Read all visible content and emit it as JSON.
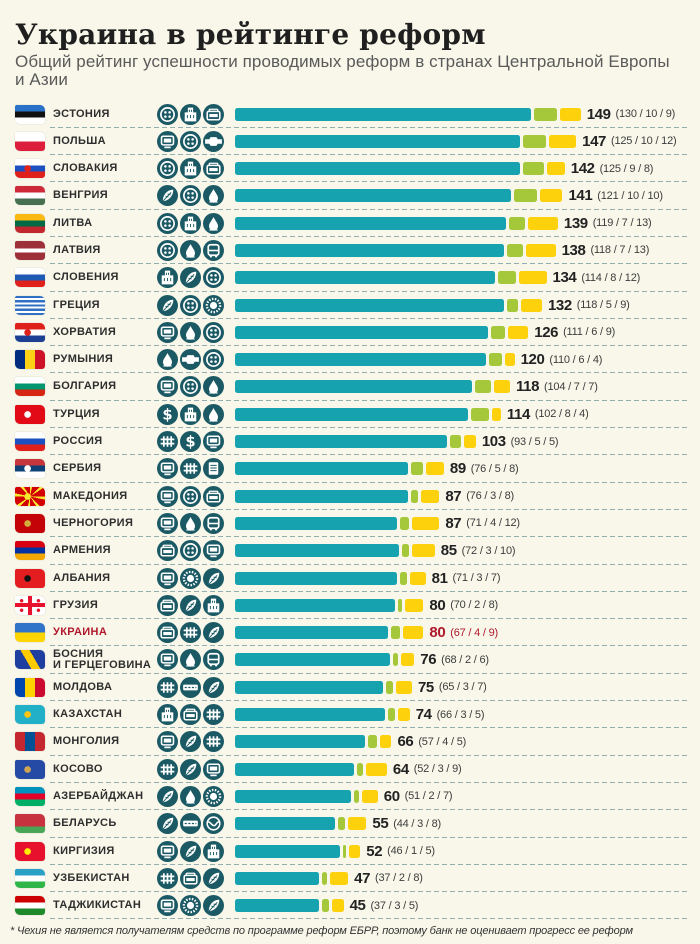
{
  "header": {
    "title": "Украина в рейтинге реформ",
    "subtitle": "Общий рейтинг успешности проводимых реформ в странах Центральной Европы и Азии"
  },
  "footnote": "* Чехия не является получателям средств по программе реформ ЕБРР, поэтому банк не оценивает прогресс ее реформ",
  "colors": {
    "teal": "#17a2b0",
    "green": "#a5c83b",
    "yellow": "#fdd10c",
    "icon_circle": "#1b5a65",
    "highlight": "#b0192d"
  },
  "chart_data": {
    "type": "bar",
    "orientation": "horizontal",
    "stacked": true,
    "title": "Украина в рейтинге реформ",
    "subtitle": "Общий рейтинг успешности проводимых реформ в странах Центральной Европы и Азии",
    "xlabel": "",
    "ylabel": "",
    "grid": false,
    "legend": "none",
    "categories": [
      "ЭСТОНИЯ",
      "ПОЛЬША",
      "СЛОВАКИЯ",
      "ВЕНГРИЯ",
      "ЛИТВА",
      "ЛАТВИЯ",
      "СЛОВЕНИЯ",
      "ГРЕЦИЯ",
      "ХОРВАТИЯ",
      "РУМЫНИЯ",
      "БОЛГАРИЯ",
      "ТУРЦИЯ",
      "РОССИЯ",
      "СЕРБИЯ",
      "МАКЕДОНИЯ",
      "ЧЕРНОГОРИЯ",
      "АРМЕНИЯ",
      "АЛБАНИЯ",
      "ГРУЗИЯ",
      "УКРАИНА",
      "БОСНИЯ И ГЕРЦЕГОВИНА",
      "МОЛДОВА",
      "КАЗАХСТАН",
      "МОНГОЛИЯ",
      "КОСОВО",
      "АЗЕРБАЙДЖАН",
      "БЕЛАРУСЬ",
      "КИРГИЗИЯ",
      "УЗБЕКИСТАН",
      "ТАДЖИКИСТАН"
    ],
    "series": [
      {
        "name": "teal",
        "color": "#17a2b0",
        "values": [
          130,
          125,
          125,
          121,
          119,
          118,
          114,
          118,
          111,
          110,
          104,
          102,
          93,
          76,
          76,
          71,
          72,
          71,
          70,
          67,
          68,
          65,
          66,
          57,
          52,
          51,
          44,
          46,
          37,
          37
        ]
      },
      {
        "name": "green",
        "color": "#a5c83b",
        "values": [
          10,
          10,
          9,
          10,
          7,
          7,
          8,
          5,
          6,
          6,
          7,
          8,
          5,
          5,
          3,
          4,
          3,
          3,
          2,
          4,
          2,
          3,
          3,
          4,
          3,
          2,
          3,
          1,
          2,
          3
        ]
      },
      {
        "name": "yellow",
        "color": "#fdd10c",
        "values": [
          9,
          12,
          8,
          10,
          13,
          13,
          12,
          9,
          9,
          4,
          7,
          4,
          5,
          8,
          8,
          12,
          10,
          7,
          8,
          9,
          6,
          7,
          5,
          5,
          9,
          7,
          8,
          5,
          8,
          5
        ]
      }
    ],
    "totals": [
      149,
      147,
      142,
      141,
      139,
      138,
      134,
      132,
      126,
      120,
      118,
      114,
      103,
      89,
      87,
      87,
      85,
      81,
      80,
      80,
      76,
      75,
      74,
      66,
      64,
      60,
      55,
      52,
      47,
      45
    ],
    "rows": [
      {
        "country": "ЭСТОНИЯ",
        "total": "149",
        "detail": "(130 / 10 / 9)",
        "parts": [
          130,
          10,
          9
        ],
        "icons": [
          "dots",
          "building",
          "bed"
        ],
        "flag": {
          "dir": "h",
          "stripes": [
            "#2a72c7",
            "#111111",
            "#ffffff"
          ]
        }
      },
      {
        "country": "ПОЛЬША",
        "total": "147",
        "detail": "(125 / 10 / 12)",
        "parts": [
          125,
          10,
          12
        ],
        "icons": [
          "monitor",
          "dots",
          "pipe"
        ],
        "flag": {
          "dir": "h",
          "stripes": [
            "#ffffff",
            "#dc1e3c"
          ]
        }
      },
      {
        "country": "СЛОВАКИЯ",
        "total": "142",
        "detail": "(125 / 9 / 8)",
        "parts": [
          125,
          9,
          8
        ],
        "icons": [
          "dots",
          "building",
          "bed"
        ],
        "flag": {
          "dir": "h",
          "stripes": [
            "#ffffff",
            "#1c4fbf",
            "#e0201b"
          ],
          "emblem": "#e0201b"
        }
      },
      {
        "country": "ВЕНГРИЯ",
        "total": "141",
        "detail": "(121 / 10 / 10)",
        "parts": [
          121,
          10,
          10
        ],
        "icons": [
          "wheat",
          "dots",
          "drop"
        ],
        "flag": {
          "dir": "h",
          "stripes": [
            "#ce2939",
            "#ffffff",
            "#477050"
          ]
        }
      },
      {
        "country": "ЛИТВА",
        "total": "139",
        "detail": "(119 / 7 / 13)",
        "parts": [
          119,
          7,
          13
        ],
        "icons": [
          "dots",
          "building",
          "drop"
        ],
        "flag": {
          "dir": "h",
          "stripes": [
            "#fdb913",
            "#006a44",
            "#c1272d"
          ]
        }
      },
      {
        "country": "ЛАТВИЯ",
        "total": "138",
        "detail": "(118 / 7 / 13)",
        "parts": [
          118,
          7,
          13
        ],
        "icons": [
          "dots",
          "drop",
          "bus"
        ],
        "flag": {
          "dir": "h",
          "stripes": [
            "#9e3039",
            "#ffffff",
            "#9e3039"
          ],
          "weights": [
            2,
            1,
            2
          ]
        }
      },
      {
        "country": "СЛОВЕНИЯ",
        "total": "134",
        "detail": "(114 / 8 / 12)",
        "parts": [
          114,
          8,
          12
        ],
        "icons": [
          "building",
          "wheat",
          "dots"
        ],
        "flag": {
          "dir": "h",
          "stripes": [
            "#ffffff",
            "#1e5ab4",
            "#e0201b"
          ]
        }
      },
      {
        "country": "ГРЕЦИЯ",
        "total": "132",
        "detail": "(118 / 5 / 9)",
        "parts": [
          118,
          5,
          9
        ],
        "icons": [
          "wheat",
          "dots",
          "sun"
        ],
        "flag": {
          "dir": "h",
          "stripes": [
            "#2f6fc4",
            "#ffffff",
            "#2f6fc4",
            "#ffffff",
            "#2f6fc4",
            "#ffffff",
            "#2f6fc4",
            "#ffffff",
            "#2f6fc4"
          ]
        }
      },
      {
        "country": "ХОРВАТИЯ",
        "total": "126",
        "detail": "(111 / 6 / 9)",
        "parts": [
          111,
          6,
          9
        ],
        "icons": [
          "monitor",
          "drop",
          "dots"
        ],
        "flag": {
          "dir": "h",
          "stripes": [
            "#e0201b",
            "#ffffff",
            "#1c3f94"
          ],
          "emblem": "#e0201b"
        }
      },
      {
        "country": "РУМЫНИЯ",
        "total": "120",
        "detail": "(110 / 6 / 4)",
        "parts": [
          110,
          6,
          4
        ],
        "icons": [
          "drop",
          "pipe",
          "dots"
        ],
        "flag": {
          "dir": "v",
          "stripes": [
            "#002b7f",
            "#fcd116",
            "#ce1126"
          ]
        }
      },
      {
        "country": "БОЛГАРИЯ",
        "total": "118",
        "detail": "(104 / 7 / 7)",
        "parts": [
          104,
          7,
          7
        ],
        "icons": [
          "monitor",
          "dots",
          "drop"
        ],
        "flag": {
          "dir": "h",
          "stripes": [
            "#ffffff",
            "#00966e",
            "#d62612"
          ]
        }
      },
      {
        "country": "ТУРЦИЯ",
        "total": "114",
        "detail": "(102 / 8 / 4)",
        "parts": [
          102,
          8,
          4
        ],
        "icons": [
          "dollar",
          "building",
          "drop"
        ],
        "flag": {
          "dir": "h",
          "stripes": [
            "#e30a17"
          ],
          "emblem": "#ffffff"
        }
      },
      {
        "country": "РОССИЯ",
        "total": "103",
        "detail": "(93 / 5 / 5)",
        "parts": [
          93,
          5,
          5
        ],
        "icons": [
          "rail",
          "dollar",
          "monitor"
        ],
        "flag": {
          "dir": "h",
          "stripes": [
            "#ffffff",
            "#1c4fbf",
            "#e0201b"
          ]
        }
      },
      {
        "country": "СЕРБИЯ",
        "total": "89",
        "detail": "(76 / 5 / 8)",
        "parts": [
          76,
          5,
          8
        ],
        "icons": [
          "monitor",
          "rail",
          "document"
        ],
        "flag": {
          "dir": "h",
          "stripes": [
            "#c6363c",
            "#0c4076",
            "#ffffff"
          ],
          "emblem": "#ffffff"
        }
      },
      {
        "country": "МАКЕДОНИЯ",
        "total": "87",
        "detail": "(76 / 3 / 8)",
        "parts": [
          76,
          3,
          8
        ],
        "icons": [
          "monitor",
          "dots",
          "bed"
        ],
        "flag": {
          "dir": "h",
          "stripes": [
            "#d20000"
          ],
          "emblem": "#f8e92e",
          "pattern": "rays"
        }
      },
      {
        "country": "ЧЕРНОГОРИЯ",
        "total": "87",
        "detail": "(71 / 4 / 12)",
        "parts": [
          71,
          4,
          12
        ],
        "icons": [
          "monitor",
          "drop",
          "bus"
        ],
        "flag": {
          "dir": "h",
          "stripes": [
            "#c40308"
          ],
          "emblem": "#d3ae3b"
        }
      },
      {
        "country": "АРМЕНИЯ",
        "total": "85",
        "detail": "(72 / 3 / 10)",
        "parts": [
          72,
          3,
          10
        ],
        "icons": [
          "bed",
          "dots",
          "monitor"
        ],
        "flag": {
          "dir": "h",
          "stripes": [
            "#d90012",
            "#0033a0",
            "#f2a800"
          ]
        }
      },
      {
        "country": "АЛБАНИЯ",
        "total": "81",
        "detail": "(71 / 3 / 7)",
        "parts": [
          71,
          3,
          7
        ],
        "icons": [
          "monitor",
          "sun",
          "wheat"
        ],
        "flag": {
          "dir": "h",
          "stripes": [
            "#e41e20"
          ],
          "emblem": "#111111"
        }
      },
      {
        "country": "ГРУЗИЯ",
        "total": "80",
        "detail": "(70 / 2 / 8)",
        "parts": [
          70,
          2,
          8
        ],
        "icons": [
          "bed",
          "wheat",
          "building"
        ],
        "flag": {
          "dir": "h",
          "stripes": [
            "#ffffff"
          ],
          "pattern": "cross",
          "cross": "#e8112d"
        }
      },
      {
        "country": "УКРАИНА",
        "total": "80",
        "detail": "(67 / 4 / 9)",
        "parts": [
          67,
          4,
          9
        ],
        "icons": [
          "bed",
          "rail",
          "wheat"
        ],
        "flag": {
          "dir": "h",
          "stripes": [
            "#2f74c8",
            "#ffd500"
          ]
        },
        "highlight": true
      },
      {
        "country": "БОСНИЯ\nИ ГЕРЦЕГОВИНА",
        "total": "76",
        "detail": "(68 / 2 / 6)",
        "parts": [
          68,
          2,
          6
        ],
        "icons": [
          "monitor",
          "drop",
          "bus"
        ],
        "flag": {
          "dir": "h",
          "stripes": [
            "#1f3fa0"
          ],
          "pattern": "bosnia"
        }
      },
      {
        "country": "МОЛДОВА",
        "total": "75",
        "detail": "(65 / 3 / 7)",
        "parts": [
          65,
          3,
          7
        ],
        "icons": [
          "rail",
          "road",
          "wheat"
        ],
        "flag": {
          "dir": "v",
          "stripes": [
            "#0046ae",
            "#ffd200",
            "#cc092f"
          ]
        }
      },
      {
        "country": "КАЗАХСТАН",
        "total": "74",
        "detail": "(66 / 3 / 5)",
        "parts": [
          66,
          3,
          5
        ],
        "icons": [
          "building",
          "bed",
          "rail"
        ],
        "flag": {
          "dir": "h",
          "stripes": [
            "#22b0c8"
          ],
          "emblem": "#fec50c"
        }
      },
      {
        "country": "МОНГОЛИЯ",
        "total": "66",
        "detail": "(57 / 4 / 5)",
        "parts": [
          57,
          4,
          5
        ],
        "icons": [
          "monitor",
          "wheat",
          "rail"
        ],
        "flag": {
          "dir": "v",
          "stripes": [
            "#c4272f",
            "#015197",
            "#c4272f"
          ]
        }
      },
      {
        "country": "КОСОВО",
        "total": "64",
        "detail": "(52 / 3 / 9)",
        "parts": [
          52,
          3,
          9
        ],
        "icons": [
          "rail",
          "wheat",
          "monitor"
        ],
        "flag": {
          "dir": "h",
          "stripes": [
            "#244aa5"
          ],
          "emblem": "#d0a650"
        }
      },
      {
        "country": "АЗЕРБАЙДЖАН",
        "total": "60",
        "detail": "(51 / 2 / 7)",
        "parts": [
          51,
          2,
          7
        ],
        "icons": [
          "wheat",
          "drop",
          "sun"
        ],
        "flag": {
          "dir": "h",
          "stripes": [
            "#0092bc",
            "#e4002b",
            "#00af66"
          ]
        }
      },
      {
        "country": "БЕЛАРУСЬ",
        "total": "55",
        "detail": "(44 / 3 / 8)",
        "parts": [
          44,
          3,
          8
        ],
        "icons": [
          "wheat",
          "road",
          "globe"
        ],
        "flag": {
          "dir": "h",
          "stripes": [
            "#c8313e",
            "#4aa657"
          ],
          "weights": [
            2,
            1
          ]
        }
      },
      {
        "country": "КИРГИЗИЯ",
        "total": "52",
        "detail": "(46 / 1 / 5)",
        "parts": [
          46,
          1,
          5
        ],
        "icons": [
          "monitor",
          "wheat",
          "building"
        ],
        "flag": {
          "dir": "h",
          "stripes": [
            "#e8112d"
          ],
          "emblem": "#ffef00"
        }
      },
      {
        "country": "УЗБЕКИСТАН",
        "total": "47",
        "detail": "(37 / 2 / 8)",
        "parts": [
          37,
          2,
          8
        ],
        "icons": [
          "rail",
          "bed",
          "wheat"
        ],
        "flag": {
          "dir": "h",
          "stripes": [
            "#2aa0c4",
            "#ffffff",
            "#2fb548"
          ]
        }
      },
      {
        "country": "ТАДЖИКИСТАН",
        "total": "45",
        "detail": "(37 / 3 / 5)",
        "parts": [
          37,
          3,
          5
        ],
        "icons": [
          "monitor",
          "sun",
          "wheat"
        ],
        "flag": {
          "dir": "h",
          "stripes": [
            "#cc0000",
            "#ffffff",
            "#1f8a2c"
          ]
        }
      }
    ]
  }
}
